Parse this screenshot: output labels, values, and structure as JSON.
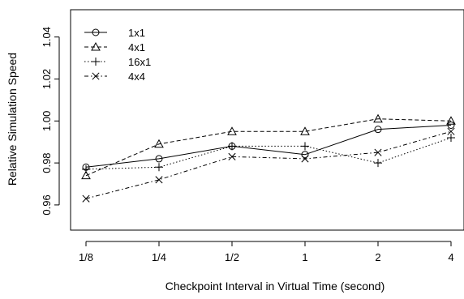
{
  "chart_data": {
    "type": "line",
    "title": "",
    "xlabel": "Checkpoint Interval in Virtual Time (second)",
    "ylabel": "Relative Simulation Speed",
    "categories": [
      "1/8",
      "1/4",
      "1/2",
      "1",
      "2",
      "4"
    ],
    "ylim": [
      0.948,
      1.053
    ],
    "yticks": [
      "0.96",
      "0.98",
      "1.00",
      "1.02",
      "1.04"
    ],
    "ytick_values": [
      0.96,
      0.98,
      1.0,
      1.02,
      1.04
    ],
    "grid": false,
    "legend_position": "top-left",
    "series": [
      {
        "name": "1x1",
        "line": "solid",
        "marker": "circle",
        "values": [
          0.978,
          0.982,
          0.988,
          0.984,
          0.996,
          0.998
        ]
      },
      {
        "name": "4x1",
        "line": "dashed",
        "marker": "triangle",
        "values": [
          0.974,
          0.989,
          0.995,
          0.995,
          1.001,
          1.0
        ]
      },
      {
        "name": "16x1",
        "line": "dotted",
        "marker": "plus",
        "values": [
          0.977,
          0.978,
          0.988,
          0.988,
          0.98,
          0.992
        ]
      },
      {
        "name": "4x4",
        "line": "dash-dot",
        "marker": "cross",
        "values": [
          0.963,
          0.972,
          0.983,
          0.982,
          0.985,
          0.995
        ]
      }
    ]
  }
}
